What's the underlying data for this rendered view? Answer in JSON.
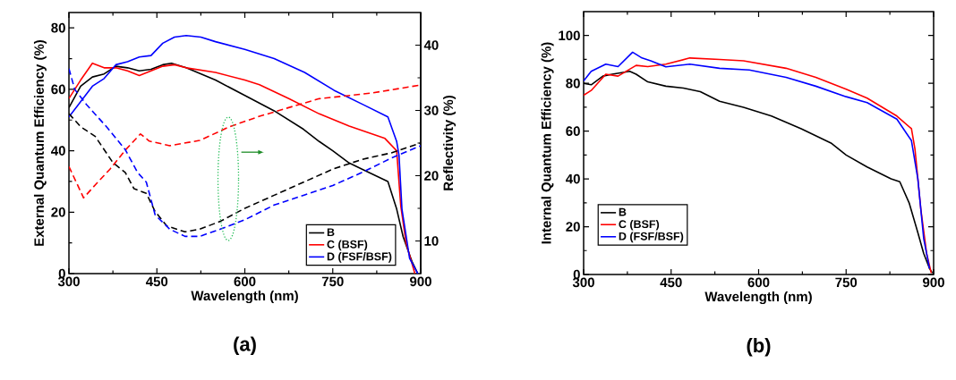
{
  "chart_data": [
    {
      "type": "line",
      "title": "(a)",
      "xlabel": "Wavelength (nm)",
      "ylabel": "External Quantum Efficiency (%)",
      "y2label": "Reflectivity (%)",
      "xlim": [
        300,
        900
      ],
      "xticks": [
        300,
        450,
        600,
        750,
        900
      ],
      "ylim": [
        0,
        85
      ],
      "yticks": [
        0,
        20,
        40,
        60,
        80
      ],
      "y2lim": [
        5,
        45
      ],
      "y2ticks": [
        10,
        20,
        30,
        40
      ],
      "legend": "bottom right",
      "series": [
        {
          "name": "B",
          "color": "#000000",
          "line_style": "solid",
          "x": [
            300,
            320,
            340,
            360,
            380,
            400,
            420,
            440,
            460,
            475,
            500,
            550,
            600,
            650,
            700,
            727,
            750,
            778,
            800,
            844,
            859,
            870,
            885,
            895
          ],
          "values": [
            54,
            61,
            64,
            65,
            67.5,
            67,
            66,
            66.5,
            68,
            68.5,
            67,
            63,
            58,
            53,
            47,
            43,
            40,
            36,
            34,
            30,
            21,
            12,
            4,
            0
          ]
        },
        {
          "name": "C (BSF)",
          "color": "#ff0000",
          "line_style": "solid",
          "x": [
            300,
            320,
            340,
            360,
            380,
            400,
            420,
            440,
            460,
            480,
            500,
            550,
            600,
            625,
            675,
            727,
            778,
            839,
            859,
            866,
            875,
            890
          ],
          "values": [
            57,
            63,
            68.5,
            67,
            67,
            66,
            64.5,
            66,
            67.5,
            68,
            67,
            65.5,
            63,
            61.5,
            57,
            52,
            48,
            44,
            40,
            22,
            10,
            0
          ]
        },
        {
          "name": "D (FSF/BSF)",
          "color": "#0000ff",
          "line_style": "solid",
          "x": [
            300,
            320,
            340,
            360,
            380,
            400,
            420,
            440,
            460,
            480,
            500,
            525,
            550,
            600,
            650,
            702,
            752,
            803,
            844,
            859,
            863,
            868,
            881,
            895
          ],
          "values": [
            51,
            56,
            61,
            63.5,
            68,
            69,
            70.5,
            71,
            75,
            77,
            77.5,
            77,
            75.5,
            73,
            70,
            65.5,
            59.7,
            54.9,
            51,
            43,
            38.5,
            21,
            5,
            0
          ]
        },
        {
          "color": "#000000",
          "line_style": "dashed",
          "axis": "y2",
          "x": [
            300,
            320,
            345,
            375,
            396,
            411,
            432,
            447,
            467,
            498,
            523,
            558,
            600,
            650,
            700,
            750,
            800,
            850,
            900
          ],
          "values": [
            29.5,
            27.5,
            26,
            22,
            20.5,
            18,
            17.3,
            14.5,
            12.3,
            11.4,
            11.8,
            13,
            15,
            17,
            19,
            21,
            22.5,
            23.5,
            25
          ]
        },
        {
          "color": "#ff0000",
          "line_style": "dashed",
          "axis": "y2",
          "x": [
            300,
            325,
            345,
            370,
            396,
            422,
            437,
            472,
            523,
            574,
            625,
            685,
            727,
            780,
            819,
            860,
            900
          ],
          "values": [
            21.4,
            16.6,
            18.6,
            21,
            23.9,
            26.4,
            25.3,
            24.6,
            25.4,
            27.5,
            29.1,
            30.7,
            31.8,
            32.3,
            32.7,
            33.3,
            33.9
          ]
        },
        {
          "color": "#0000ff",
          "line_style": "dashed",
          "axis": "y2",
          "x": [
            300,
            310,
            330,
            366,
            396,
            417,
            432,
            447,
            472,
            498,
            523,
            558,
            599,
            650,
            700,
            750,
            800,
            850,
            900
          ],
          "values": [
            36.4,
            33.2,
            30.9,
            27.3,
            24,
            20.5,
            19,
            14,
            11.8,
            10.7,
            10.7,
            11.8,
            13.2,
            15.5,
            17,
            18.5,
            20.5,
            22.7,
            24.6
          ]
        }
      ]
    },
    {
      "type": "line",
      "title": "(b)",
      "xlabel": "Wavelength (nm)",
      "ylabel": "Internal Quantum Efficiency (%)",
      "xlim": [
        300,
        900
      ],
      "xticks": [
        300,
        450,
        600,
        750,
        900
      ],
      "ylim": [
        0,
        110
      ],
      "yticks": [
        0,
        20,
        40,
        60,
        80,
        100
      ],
      "legend": "bottom left",
      "series": [
        {
          "name": "B",
          "color": "#000000",
          "x": [
            300,
            313,
            333,
            349,
            379,
            390,
            410,
            441,
            471,
            500,
            533,
            574,
            622,
            673,
            724,
            750,
            786,
            827,
            842,
            858,
            873,
            883,
            893,
            898
          ],
          "values": [
            80,
            79.4,
            83,
            83.8,
            85,
            83.8,
            80.6,
            78.8,
            78,
            76.5,
            72.5,
            70,
            66.3,
            61,
            55,
            50,
            45,
            40,
            38.8,
            30,
            17.5,
            8.8,
            2.5,
            0.6
          ]
        },
        {
          "name": "C (BSF)",
          "color": "#ff0000",
          "x": [
            300,
            313,
            338,
            359,
            390,
            410,
            441,
            482,
            533,
            574,
            647,
            698,
            750,
            786,
            837,
            862,
            868,
            878,
            888,
            896
          ],
          "values": [
            75,
            77,
            83.8,
            83,
            87.5,
            87,
            88,
            90.6,
            90,
            89.4,
            86.3,
            82.5,
            77.5,
            73.8,
            66.3,
            61,
            52.5,
            27.5,
            8.8,
            0.6
          ]
        },
        {
          "name": "D (FSF/BSF)",
          "color": "#0000ff",
          "x": [
            300,
            313,
            338,
            359,
            384,
            400,
            415,
            441,
            482,
            533,
            584,
            647,
            698,
            750,
            786,
            837,
            862,
            873,
            883,
            893
          ],
          "values": [
            81,
            85,
            88,
            87,
            93,
            90.6,
            89.4,
            86.9,
            88,
            86.3,
            85.6,
            82.5,
            78.8,
            74.4,
            71.9,
            65,
            56,
            40,
            15,
            2.5
          ]
        }
      ]
    }
  ]
}
